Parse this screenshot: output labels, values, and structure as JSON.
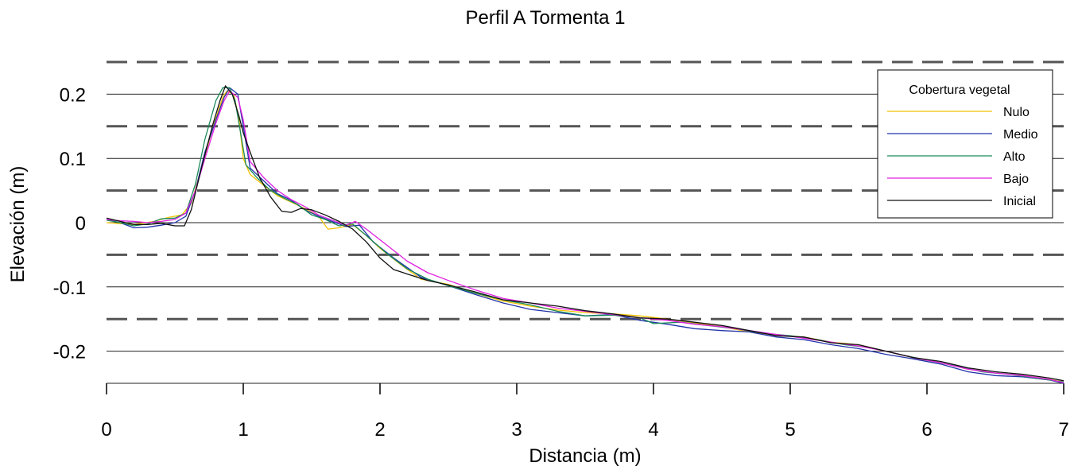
{
  "chart_data": {
    "type": "line",
    "title": "Perfil A Tormenta 1",
    "xlabel": "Distancia (m)",
    "ylabel": "Elevación (m)",
    "xlim": [
      0,
      7
    ],
    "ylim": [
      -0.25,
      0.25
    ],
    "x_ticks": [
      "0",
      "1",
      "2",
      "3",
      "4",
      "5",
      "6",
      "7"
    ],
    "y_ticks": [
      "0.2",
      "0.1",
      "0",
      "-0.1",
      "-0.2"
    ],
    "y_tick_values": [
      0.2,
      0.1,
      0,
      -0.1,
      -0.2
    ],
    "solid_grid_y": [
      0.2,
      0.1,
      0,
      -0.1,
      -0.2,
      -0.25
    ],
    "dashed_grid_y": [
      0.25,
      0.15,
      0.05,
      -0.05,
      -0.15
    ],
    "grid": true,
    "legend": {
      "title": "Cobertura vegetal",
      "position": "top-right"
    },
    "series": [
      {
        "name": "Nulo",
        "color": "#f2c200",
        "points": [
          [
            0,
            0.0
          ],
          [
            0.2,
            -0.003
          ],
          [
            0.35,
            0.002
          ],
          [
            0.45,
            0.008
          ],
          [
            0.55,
            0.012
          ],
          [
            0.62,
            0.03
          ],
          [
            0.7,
            0.09
          ],
          [
            0.78,
            0.15
          ],
          [
            0.85,
            0.195
          ],
          [
            0.88,
            0.205
          ],
          [
            0.93,
            0.2
          ],
          [
            0.97,
            0.16
          ],
          [
            1.0,
            0.1
          ],
          [
            1.05,
            0.075
          ],
          [
            1.15,
            0.058
          ],
          [
            1.25,
            0.042
          ],
          [
            1.35,
            0.032
          ],
          [
            1.45,
            0.022
          ],
          [
            1.55,
            0.01
          ],
          [
            1.62,
            -0.01
          ],
          [
            1.7,
            -0.008
          ],
          [
            1.8,
            -0.003
          ],
          [
            1.9,
            -0.02
          ],
          [
            2.0,
            -0.04
          ],
          [
            2.15,
            -0.065
          ],
          [
            2.3,
            -0.088
          ],
          [
            2.5,
            -0.096
          ],
          [
            2.7,
            -0.11
          ],
          [
            2.9,
            -0.122
          ],
          [
            3.1,
            -0.13
          ],
          [
            3.3,
            -0.136
          ],
          [
            3.5,
            -0.14
          ],
          [
            3.7,
            -0.142
          ],
          [
            3.9,
            -0.145
          ],
          [
            4.1,
            -0.15
          ],
          [
            4.3,
            -0.156
          ],
          [
            4.5,
            -0.162
          ],
          [
            4.7,
            -0.17
          ],
          [
            4.9,
            -0.175
          ],
          [
            5.1,
            -0.178
          ],
          [
            5.3,
            -0.186
          ],
          [
            5.5,
            -0.19
          ],
          [
            5.7,
            -0.2
          ],
          [
            5.9,
            -0.21
          ],
          [
            6.1,
            -0.218
          ],
          [
            6.3,
            -0.228
          ],
          [
            6.5,
            -0.234
          ],
          [
            6.7,
            -0.238
          ],
          [
            6.9,
            -0.244
          ],
          [
            7.0,
            -0.248
          ]
        ]
      },
      {
        "name": "Medio",
        "color": "#2233aa",
        "points": [
          [
            0,
            0.005
          ],
          [
            0.1,
            0.0
          ],
          [
            0.2,
            -0.008
          ],
          [
            0.3,
            -0.007
          ],
          [
            0.4,
            -0.004
          ],
          [
            0.5,
            0.0
          ],
          [
            0.58,
            0.01
          ],
          [
            0.65,
            0.05
          ],
          [
            0.72,
            0.11
          ],
          [
            0.8,
            0.16
          ],
          [
            0.86,
            0.195
          ],
          [
            0.9,
            0.21
          ],
          [
            0.96,
            0.2
          ],
          [
            1.0,
            0.15
          ],
          [
            1.05,
            0.085
          ],
          [
            1.15,
            0.065
          ],
          [
            1.25,
            0.045
          ],
          [
            1.35,
            0.035
          ],
          [
            1.45,
            0.02
          ],
          [
            1.55,
            0.01
          ],
          [
            1.65,
            0.002
          ],
          [
            1.75,
            -0.006
          ],
          [
            1.85,
            -0.004
          ],
          [
            1.95,
            -0.03
          ],
          [
            2.1,
            -0.055
          ],
          [
            2.3,
            -0.085
          ],
          [
            2.5,
            -0.098
          ],
          [
            2.7,
            -0.112
          ],
          [
            2.9,
            -0.125
          ],
          [
            3.1,
            -0.135
          ],
          [
            3.3,
            -0.14
          ],
          [
            3.5,
            -0.145
          ],
          [
            3.7,
            -0.143
          ],
          [
            3.9,
            -0.152
          ],
          [
            4.1,
            -0.158
          ],
          [
            4.3,
            -0.165
          ],
          [
            4.5,
            -0.168
          ],
          [
            4.7,
            -0.17
          ],
          [
            4.9,
            -0.178
          ],
          [
            5.1,
            -0.182
          ],
          [
            5.3,
            -0.19
          ],
          [
            5.5,
            -0.196
          ],
          [
            5.7,
            -0.205
          ],
          [
            5.9,
            -0.212
          ],
          [
            6.1,
            -0.22
          ],
          [
            6.3,
            -0.232
          ],
          [
            6.5,
            -0.238
          ],
          [
            6.7,
            -0.24
          ],
          [
            6.9,
            -0.245
          ],
          [
            7.0,
            -0.25
          ]
        ]
      },
      {
        "name": "Alto",
        "color": "#1a8a5a",
        "points": [
          [
            0,
            0.004
          ],
          [
            0.1,
            0.0
          ],
          [
            0.2,
            -0.005
          ],
          [
            0.3,
            -0.002
          ],
          [
            0.4,
            0.006
          ],
          [
            0.5,
            0.007
          ],
          [
            0.58,
            0.015
          ],
          [
            0.65,
            0.06
          ],
          [
            0.72,
            0.13
          ],
          [
            0.8,
            0.19
          ],
          [
            0.85,
            0.21
          ],
          [
            0.9,
            0.21
          ],
          [
            0.94,
            0.19
          ],
          [
            0.98,
            0.14
          ],
          [
            1.02,
            0.09
          ],
          [
            1.1,
            0.07
          ],
          [
            1.2,
            0.05
          ],
          [
            1.3,
            0.038
          ],
          [
            1.4,
            0.028
          ],
          [
            1.5,
            0.012
          ],
          [
            1.6,
            0.005
          ],
          [
            1.7,
            -0.005
          ],
          [
            1.8,
            -0.002
          ],
          [
            1.9,
            -0.02
          ],
          [
            2.05,
            -0.048
          ],
          [
            2.2,
            -0.072
          ],
          [
            2.35,
            -0.088
          ],
          [
            2.5,
            -0.098
          ],
          [
            2.7,
            -0.11
          ],
          [
            2.9,
            -0.12
          ],
          [
            3.1,
            -0.128
          ],
          [
            3.3,
            -0.138
          ],
          [
            3.5,
            -0.145
          ],
          [
            3.7,
            -0.144
          ],
          [
            3.9,
            -0.148
          ],
          [
            4.0,
            -0.157
          ],
          [
            4.2,
            -0.155
          ],
          [
            4.4,
            -0.16
          ],
          [
            4.6,
            -0.165
          ],
          [
            4.8,
            -0.172
          ],
          [
            5.0,
            -0.176
          ],
          [
            5.2,
            -0.182
          ],
          [
            5.4,
            -0.19
          ],
          [
            5.6,
            -0.195
          ],
          [
            5.8,
            -0.205
          ],
          [
            6.0,
            -0.214
          ],
          [
            6.2,
            -0.222
          ],
          [
            6.4,
            -0.232
          ],
          [
            6.6,
            -0.236
          ],
          [
            6.8,
            -0.242
          ],
          [
            7.0,
            -0.248
          ]
        ]
      },
      {
        "name": "Bajo",
        "color": "#e020e0",
        "points": [
          [
            0,
            0.005
          ],
          [
            0.1,
            0.003
          ],
          [
            0.2,
            0.002
          ],
          [
            0.3,
            0.0
          ],
          [
            0.4,
            0.002
          ],
          [
            0.5,
            0.005
          ],
          [
            0.58,
            0.015
          ],
          [
            0.65,
            0.05
          ],
          [
            0.72,
            0.1
          ],
          [
            0.8,
            0.155
          ],
          [
            0.86,
            0.19
          ],
          [
            0.9,
            0.205
          ],
          [
            0.96,
            0.195
          ],
          [
            1.0,
            0.16
          ],
          [
            1.05,
            0.095
          ],
          [
            1.15,
            0.07
          ],
          [
            1.25,
            0.05
          ],
          [
            1.35,
            0.036
          ],
          [
            1.45,
            0.025
          ],
          [
            1.55,
            0.012
          ],
          [
            1.65,
            0.004
          ],
          [
            1.75,
            -0.004
          ],
          [
            1.82,
            0.002
          ],
          [
            1.9,
            -0.01
          ],
          [
            2.05,
            -0.035
          ],
          [
            2.2,
            -0.06
          ],
          [
            2.35,
            -0.078
          ],
          [
            2.5,
            -0.09
          ],
          [
            2.7,
            -0.105
          ],
          [
            2.9,
            -0.118
          ],
          [
            3.1,
            -0.125
          ],
          [
            3.3,
            -0.133
          ],
          [
            3.5,
            -0.138
          ],
          [
            3.7,
            -0.143
          ],
          [
            3.9,
            -0.148
          ],
          [
            4.1,
            -0.152
          ],
          [
            4.3,
            -0.158
          ],
          [
            4.5,
            -0.162
          ],
          [
            4.7,
            -0.168
          ],
          [
            4.9,
            -0.174
          ],
          [
            5.1,
            -0.18
          ],
          [
            5.3,
            -0.186
          ],
          [
            5.5,
            -0.192
          ],
          [
            5.7,
            -0.2
          ],
          [
            5.9,
            -0.21
          ],
          [
            6.1,
            -0.218
          ],
          [
            6.3,
            -0.228
          ],
          [
            6.5,
            -0.234
          ],
          [
            6.7,
            -0.238
          ],
          [
            6.9,
            -0.244
          ],
          [
            7.0,
            -0.249
          ]
        ]
      },
      {
        "name": "Inicial",
        "color": "#111111",
        "points": [
          [
            0,
            0.007
          ],
          [
            0.1,
            0.002
          ],
          [
            0.2,
            -0.003
          ],
          [
            0.3,
            -0.003
          ],
          [
            0.4,
            -0.001
          ],
          [
            0.5,
            -0.005
          ],
          [
            0.57,
            -0.005
          ],
          [
            0.62,
            0.02
          ],
          [
            0.7,
            0.09
          ],
          [
            0.78,
            0.155
          ],
          [
            0.83,
            0.19
          ],
          [
            0.87,
            0.213
          ],
          [
            0.92,
            0.2
          ],
          [
            0.97,
            0.165
          ],
          [
            1.0,
            0.14
          ],
          [
            1.05,
            0.11
          ],
          [
            1.12,
            0.07
          ],
          [
            1.2,
            0.04
          ],
          [
            1.28,
            0.018
          ],
          [
            1.35,
            0.016
          ],
          [
            1.42,
            0.022
          ],
          [
            1.5,
            0.02
          ],
          [
            1.6,
            0.012
          ],
          [
            1.7,
            0.002
          ],
          [
            1.8,
            -0.01
          ],
          [
            1.9,
            -0.03
          ],
          [
            2.0,
            -0.055
          ],
          [
            2.1,
            -0.073
          ],
          [
            2.2,
            -0.08
          ],
          [
            2.35,
            -0.09
          ],
          [
            2.5,
            -0.097
          ],
          [
            2.7,
            -0.108
          ],
          [
            2.9,
            -0.12
          ],
          [
            3.1,
            -0.125
          ],
          [
            3.3,
            -0.13
          ],
          [
            3.5,
            -0.137
          ],
          [
            3.7,
            -0.142
          ],
          [
            3.9,
            -0.148
          ],
          [
            4.1,
            -0.15
          ],
          [
            4.3,
            -0.155
          ],
          [
            4.5,
            -0.16
          ],
          [
            4.7,
            -0.168
          ],
          [
            4.9,
            -0.176
          ],
          [
            5.1,
            -0.178
          ],
          [
            5.3,
            -0.187
          ],
          [
            5.5,
            -0.19
          ],
          [
            5.7,
            -0.2
          ],
          [
            5.9,
            -0.21
          ],
          [
            6.1,
            -0.216
          ],
          [
            6.3,
            -0.226
          ],
          [
            6.5,
            -0.232
          ],
          [
            6.7,
            -0.236
          ],
          [
            6.9,
            -0.242
          ],
          [
            7.0,
            -0.246
          ]
        ]
      }
    ]
  }
}
